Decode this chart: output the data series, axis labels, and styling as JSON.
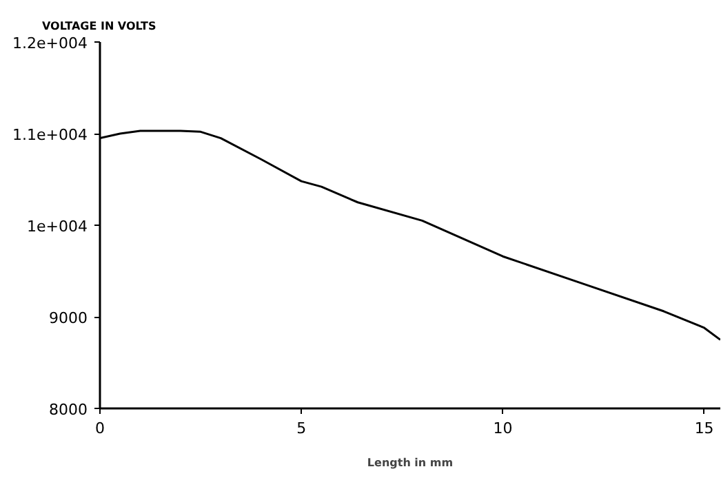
{
  "chart_data": {
    "type": "line",
    "xlabel": "Length in mm",
    "ylabel": "VOLTAGE IN VOLTS",
    "x": [
      0,
      0.5,
      1,
      2,
      2.5,
      3,
      4,
      5,
      5.5,
      6.4,
      8,
      10,
      12,
      14,
      15,
      15.4
    ],
    "series": [
      {
        "color": "#000000",
        "values": [
          10950,
          11000,
          11030,
          11030,
          11020,
          10950,
          10720,
          10480,
          10420,
          10250,
          10050,
          9660,
          9360,
          9060,
          8880,
          8750
        ]
      }
    ],
    "xlim": [
      0,
      15.4
    ],
    "xticks": [
      0,
      5,
      10,
      15
    ],
    "ylim": [
      8000,
      12000
    ],
    "yticks": [
      8000,
      9000,
      {
        "value": 10000,
        "label": "1e+004"
      },
      {
        "value": 11000,
        "label": "1.1e+004"
      },
      {
        "value": 12000,
        "label": "1.2e+004"
      }
    ],
    "grid": false,
    "marker": "none",
    "line_style": "solid"
  }
}
